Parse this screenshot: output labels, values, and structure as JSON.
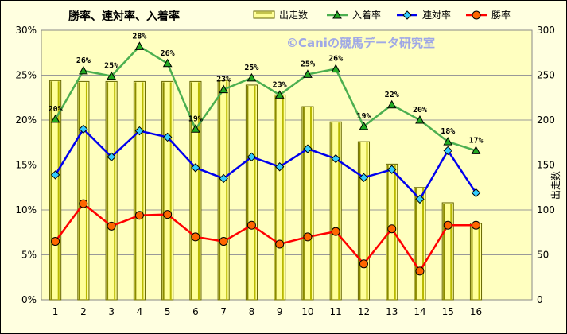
{
  "chart_data": {
    "type": "bar+line",
    "title": "勝率、連対率、入着率",
    "watermark": "©Caniの競馬データ研究室",
    "ylabel_right": "出走数",
    "categories": [
      "1",
      "2",
      "3",
      "4",
      "5",
      "6",
      "7",
      "8",
      "9",
      "10",
      "11",
      "12",
      "13",
      "14",
      "15",
      "16"
    ],
    "y_left": {
      "min": 0,
      "max": 30,
      "ticks": [
        "0%",
        "5%",
        "10%",
        "15%",
        "20%",
        "25%",
        "30%"
      ]
    },
    "y_right": {
      "min": 0,
      "max": 300,
      "ticks": [
        "0",
        "50",
        "100",
        "150",
        "200",
        "250",
        "300"
      ]
    },
    "legend": {
      "placement": "top",
      "items": [
        {
          "name": "出走数",
          "marker": "bar"
        },
        {
          "name": "入着率",
          "marker": "triangle"
        },
        {
          "name": "連対率",
          "marker": "diamond"
        },
        {
          "name": "勝率",
          "marker": "circle"
        }
      ]
    },
    "series": [
      {
        "name": "出走数",
        "type": "bar",
        "axis": "right",
        "color": "#ffff99",
        "edge": "#666600",
        "values": [
          244,
          243,
          243,
          243,
          243,
          243,
          244,
          239,
          228,
          215,
          198,
          176,
          151,
          125,
          108,
          85
        ]
      },
      {
        "name": "入着率",
        "type": "line",
        "axis": "left",
        "color": "#4caf50",
        "marker_color": "#22aa22",
        "values": [
          20.1,
          25.5,
          24.9,
          28.2,
          26.3,
          19.0,
          23.4,
          24.7,
          22.8,
          25.1,
          25.7,
          19.3,
          21.7,
          20.0,
          17.6,
          16.6
        ],
        "labels": [
          "20%",
          "26%",
          "25%",
          "28%",
          "26%",
          "19%",
          "23%",
          "25%",
          "23%",
          "25%",
          "26%",
          "19%",
          "22%",
          "20%",
          "18%",
          "17%"
        ]
      },
      {
        "name": "連対率",
        "type": "line",
        "axis": "left",
        "color": "#0000ee",
        "marker_color": "#33ccff",
        "values": [
          13.9,
          19.0,
          15.9,
          18.8,
          18.1,
          14.7,
          13.5,
          15.9,
          14.8,
          16.8,
          15.7,
          13.6,
          14.5,
          11.2,
          16.6,
          11.9
        ]
      },
      {
        "name": "勝率",
        "type": "line",
        "axis": "left",
        "color": "#ff0000",
        "marker_color": "#ff6600",
        "values": [
          6.5,
          10.7,
          8.2,
          9.4,
          9.5,
          7.0,
          6.5,
          8.3,
          6.2,
          7.0,
          7.6,
          4.0,
          7.9,
          3.2,
          8.3,
          8.3
        ]
      }
    ]
  }
}
